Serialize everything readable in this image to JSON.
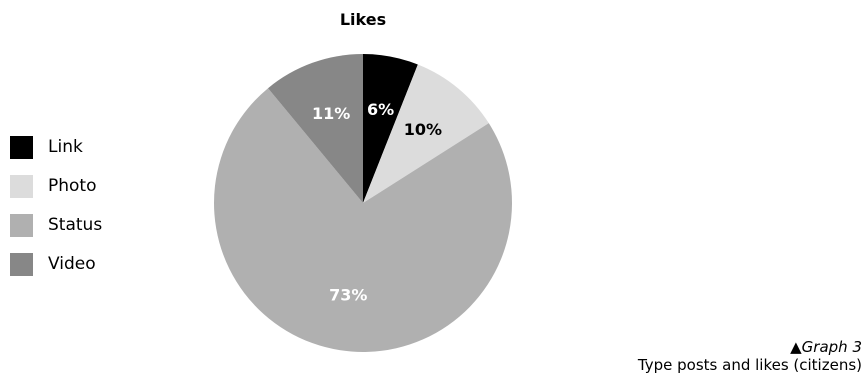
{
  "chart_data": {
    "type": "pie",
    "title": "Likes",
    "categories": [
      "Link",
      "Photo",
      "Status",
      "Video"
    ],
    "values": [
      6,
      10,
      73,
      11
    ],
    "labels": [
      "6%",
      "10%",
      "73%",
      "11%"
    ],
    "colors": [
      "#000000",
      "#dcdcdc",
      "#b0b0b0",
      "#878787"
    ],
    "label_colors": [
      "#ffffff",
      "#000000",
      "#ffffff",
      "#ffffff"
    ],
    "legend_position": "left"
  },
  "caption": {
    "marker": "▲",
    "graph_ref": "Graph 3",
    "text": "Type posts and likes (citizens)"
  }
}
